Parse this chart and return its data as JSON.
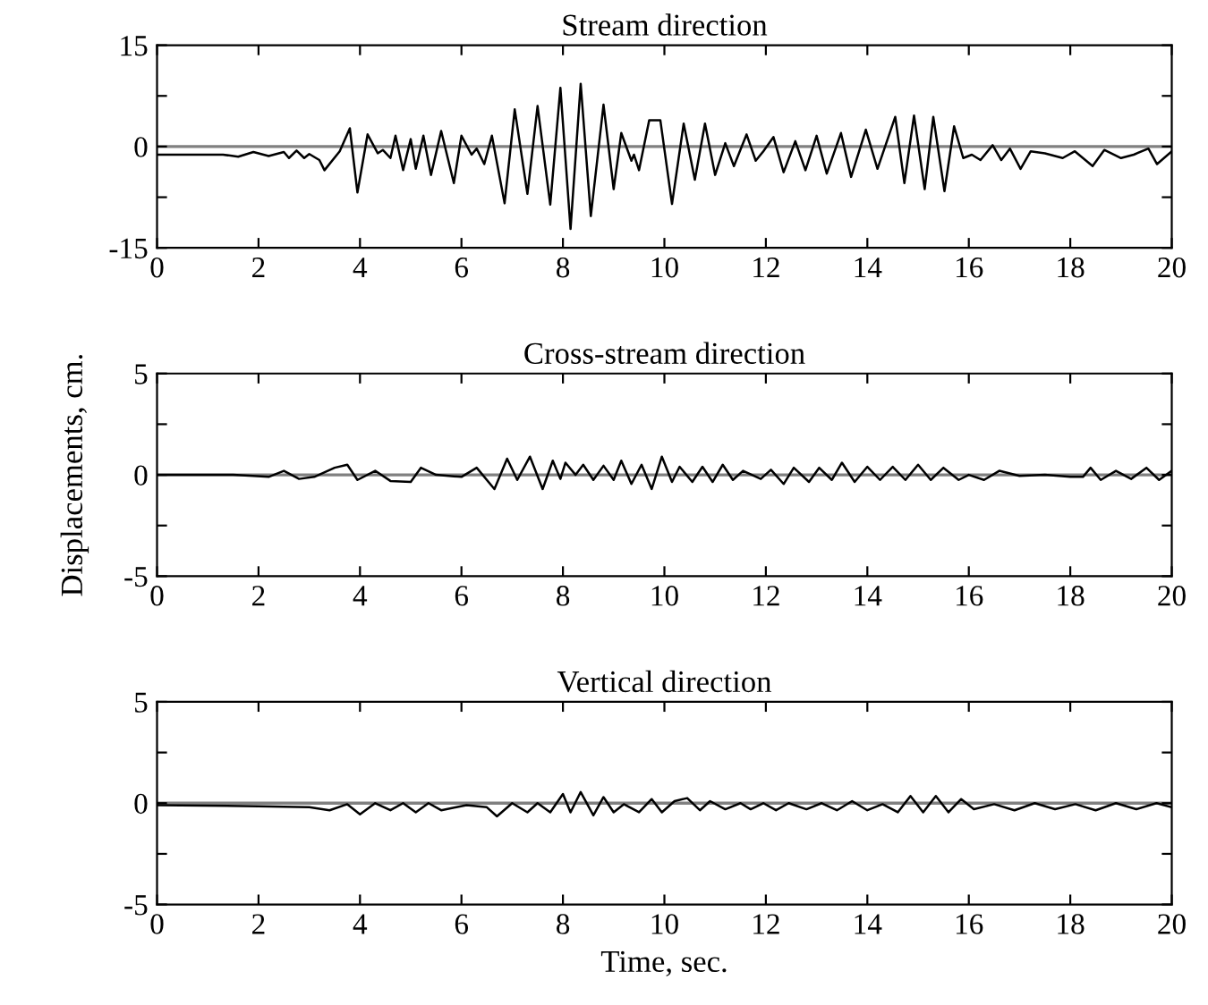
{
  "chart_data": [
    {
      "type": "line",
      "title": "Stream direction",
      "xlim": [
        0,
        20
      ],
      "ylim": [
        -15,
        15
      ],
      "xticks": [
        0,
        2,
        4,
        6,
        8,
        10,
        12,
        14,
        16,
        18,
        20
      ],
      "yticks": [
        -15,
        {
          "value": -7.5,
          "label": null
        },
        0,
        {
          "value": 7.5,
          "label": null
        },
        15
      ],
      "grid": false,
      "legend": false,
      "ref_lines": [
        {
          "axis": "y",
          "value": 0,
          "color": "#808080"
        }
      ],
      "series": [
        {
          "color": "#000000",
          "x": [
            0,
            1.3,
            1.6,
            1.9,
            2.2,
            2.5,
            2.6,
            2.75,
            2.9,
            3.0,
            3.2,
            3.3,
            3.6,
            3.8,
            3.95,
            4.15,
            4.35,
            4.45,
            4.6,
            4.7,
            4.85,
            5.0,
            5.1,
            5.25,
            5.4,
            5.6,
            5.85,
            6.0,
            6.2,
            6.3,
            6.45,
            6.6,
            6.85,
            7.05,
            7.3,
            7.5,
            7.75,
            7.95,
            8.15,
            8.35,
            8.55,
            8.8,
            9.0,
            9.15,
            9.35,
            9.4,
            9.5,
            9.7,
            9.92,
            10.15,
            10.38,
            10.6,
            10.8,
            11.0,
            11.2,
            11.37,
            11.62,
            11.8,
            11.95,
            12.15,
            12.35,
            12.58,
            12.78,
            13.0,
            13.2,
            13.48,
            13.68,
            13.97,
            14.2,
            14.55,
            14.73,
            14.92,
            15.13,
            15.3,
            15.52,
            15.71,
            15.89,
            16.06,
            16.23,
            16.47,
            16.64,
            16.81,
            17.02,
            17.22,
            17.5,
            17.85,
            18.09,
            18.44,
            18.67,
            19.0,
            19.25,
            19.54,
            19.71,
            20
          ],
          "values": [
            -1.2,
            -1.2,
            -1.5,
            -0.8,
            -1.4,
            -0.8,
            -1.7,
            -0.6,
            -1.7,
            -1.1,
            -2.0,
            -3.5,
            -0.7,
            2.7,
            -6.8,
            1.8,
            -1.0,
            -0.5,
            -1.7,
            1.6,
            -3.5,
            1.1,
            -3.3,
            1.6,
            -4.2,
            2.3,
            -5.4,
            1.6,
            -1.2,
            -0.3,
            -2.6,
            1.6,
            -8.4,
            5.5,
            -7.0,
            6.0,
            -8.6,
            8.7,
            -12.2,
            9.3,
            -10.3,
            6.2,
            -6.3,
            2.0,
            -2.1,
            -1.2,
            -3.5,
            3.9,
            3.9,
            -8.5,
            3.4,
            -4.9,
            3.4,
            -4.2,
            0.5,
            -2.9,
            1.8,
            -2.1,
            -0.7,
            1.4,
            -3.8,
            0.8,
            -3.5,
            1.6,
            -4.0,
            2.0,
            -4.5,
            2.5,
            -3.3,
            4.4,
            -5.4,
            4.6,
            -6.3,
            4.4,
            -6.6,
            3.0,
            -1.7,
            -1.2,
            -2.0,
            0.2,
            -2.0,
            -0.3,
            -3.3,
            -0.7,
            -1.0,
            -1.7,
            -0.7,
            -2.9,
            -0.5,
            -1.7,
            -1.2,
            -0.3,
            -2.6,
            -0.7
          ]
        }
      ]
    },
    {
      "type": "line",
      "title": "Cross-stream direction",
      "ylabel": "Displacements, cm.",
      "xlim": [
        0,
        20
      ],
      "ylim": [
        -5,
        5
      ],
      "xticks": [
        0,
        2,
        4,
        6,
        8,
        10,
        12,
        14,
        16,
        18,
        20
      ],
      "yticks": [
        -5,
        {
          "value": -2.5,
          "label": null
        },
        0,
        {
          "value": 2.5,
          "label": null
        },
        5
      ],
      "grid": false,
      "legend": false,
      "ref_lines": [
        {
          "axis": "y",
          "value": 0,
          "color": "#808080"
        }
      ],
      "series": [
        {
          "color": "#000000",
          "x": [
            0,
            1.5,
            2.2,
            2.5,
            2.8,
            3.1,
            3.5,
            3.75,
            3.95,
            4.3,
            4.6,
            5.0,
            5.2,
            5.5,
            6.0,
            6.3,
            6.65,
            6.9,
            7.1,
            7.35,
            7.6,
            7.8,
            7.95,
            8.05,
            8.25,
            8.4,
            8.6,
            8.8,
            9.0,
            9.15,
            9.35,
            9.55,
            9.75,
            9.95,
            10.15,
            10.3,
            10.55,
            10.75,
            10.95,
            11.15,
            11.35,
            11.55,
            11.9,
            12.1,
            12.35,
            12.55,
            12.85,
            13.05,
            13.3,
            13.5,
            13.75,
            14.0,
            14.25,
            14.5,
            14.75,
            15.0,
            15.25,
            15.5,
            15.8,
            16.0,
            16.3,
            16.6,
            17.0,
            17.5,
            18.0,
            18.25,
            18.4,
            18.6,
            18.9,
            19.2,
            19.5,
            19.75,
            20
          ],
          "values": [
            0,
            0,
            -0.1,
            0.2,
            -0.2,
            -0.1,
            0.35,
            0.5,
            -0.25,
            0.2,
            -0.3,
            -0.35,
            0.35,
            0,
            -0.1,
            0.35,
            -0.7,
            0.8,
            -0.25,
            0.9,
            -0.7,
            0.7,
            -0.2,
            0.6,
            0,
            0.5,
            -0.25,
            0.45,
            -0.25,
            0.7,
            -0.45,
            0.5,
            -0.7,
            0.9,
            -0.35,
            0.4,
            -0.35,
            0.4,
            -0.35,
            0.5,
            -0.25,
            0.2,
            -0.2,
            0.25,
            -0.45,
            0.35,
            -0.35,
            0.35,
            -0.25,
            0.6,
            -0.35,
            0.4,
            -0.25,
            0.4,
            -0.25,
            0.5,
            -0.25,
            0.35,
            -0.25,
            0,
            -0.25,
            0.2,
            -0.05,
            0,
            -0.1,
            -0.1,
            0.35,
            -0.25,
            0.2,
            -0.2,
            0.35,
            -0.25,
            0.2
          ]
        }
      ]
    },
    {
      "type": "line",
      "title": "Vertical direction",
      "xlabel": "Time, sec.",
      "xlim": [
        0,
        20
      ],
      "ylim": [
        -5,
        5
      ],
      "xticks": [
        0,
        2,
        4,
        6,
        8,
        10,
        12,
        14,
        16,
        18,
        20
      ],
      "yticks": [
        -5,
        {
          "value": -2.5,
          "label": null
        },
        0,
        {
          "value": 2.5,
          "label": null
        },
        5
      ],
      "grid": false,
      "legend": false,
      "ref_lines": [
        {
          "axis": "y",
          "value": 0,
          "color": "#808080"
        }
      ],
      "series": [
        {
          "color": "#000000",
          "x": [
            0,
            2,
            3.0,
            3.4,
            3.75,
            4.0,
            4.3,
            4.6,
            4.85,
            5.1,
            5.35,
            5.6,
            5.9,
            6.1,
            6.5,
            6.7,
            7.0,
            7.3,
            7.5,
            7.75,
            8.0,
            8.15,
            8.35,
            8.6,
            8.8,
            9.0,
            9.2,
            9.5,
            9.75,
            9.95,
            10.2,
            10.45,
            10.7,
            10.9,
            11.2,
            11.5,
            11.7,
            11.95,
            12.2,
            12.45,
            12.8,
            13.1,
            13.4,
            13.7,
            14.0,
            14.3,
            14.6,
            14.85,
            15.1,
            15.35,
            15.6,
            15.85,
            16.1,
            16.5,
            16.9,
            17.3,
            17.7,
            18.1,
            18.5,
            18.9,
            19.3,
            19.7,
            20
          ],
          "values": [
            -0.1,
            -0.15,
            -0.2,
            -0.35,
            -0.05,
            -0.55,
            0,
            -0.35,
            0,
            -0.45,
            0,
            -0.35,
            -0.2,
            -0.1,
            -0.2,
            -0.65,
            0,
            -0.45,
            0,
            -0.45,
            0.45,
            -0.45,
            0.55,
            -0.6,
            0.3,
            -0.45,
            -0.05,
            -0.45,
            0.2,
            -0.45,
            0.1,
            0.25,
            -0.35,
            0.1,
            -0.3,
            0,
            -0.3,
            0,
            -0.35,
            0,
            -0.3,
            0,
            -0.35,
            0.1,
            -0.35,
            -0.05,
            -0.45,
            0.35,
            -0.45,
            0.35,
            -0.45,
            0.2,
            -0.3,
            -0.05,
            -0.35,
            0,
            -0.3,
            -0.05,
            -0.35,
            0,
            -0.3,
            0,
            -0.2
          ]
        }
      ]
    }
  ]
}
